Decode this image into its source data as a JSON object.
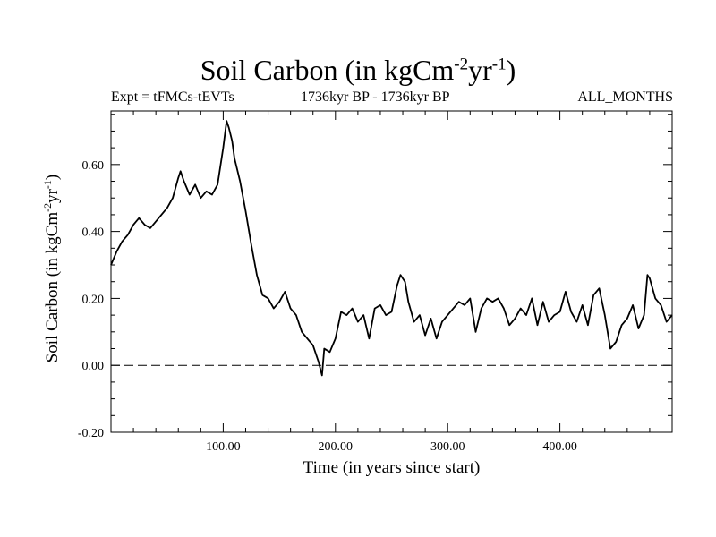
{
  "chart_data": {
    "type": "line",
    "title_main": "Soil Carbon (in kgCm",
    "title_exp1": "-2",
    "title_mid": "yr",
    "title_exp2": "-1",
    "title_end": ")",
    "subtitle_left": "Expt = tFMCs-tEVTs",
    "subtitle_center": "1736kyr BP - 1736kyr BP",
    "subtitle_right": "ALL_MONTHS",
    "xlabel": "Time (in years since start)",
    "ylabel_main": "Soil Carbon (in kgCm",
    "ylabel_exp1": "-2",
    "ylabel_mid": "yr",
    "ylabel_exp2": "-1",
    "ylabel_end": ")",
    "xlim": [
      0,
      500
    ],
    "ylim": [
      -0.2,
      0.76
    ],
    "xticks": [
      100,
      200,
      300,
      400
    ],
    "xtick_labels": [
      "100.00",
      "200.00",
      "300.00",
      "400.00"
    ],
    "yticks": [
      -0.2,
      0.0,
      0.2,
      0.4,
      0.6
    ],
    "ytick_labels": [
      "-0.20",
      "0.00",
      "0.20",
      "0.40",
      "0.60"
    ],
    "reference_line": 0.0,
    "series": [
      {
        "name": "Soil Carbon",
        "x": [
          0,
          5,
          10,
          15,
          20,
          25,
          30,
          35,
          40,
          45,
          50,
          55,
          60,
          62,
          65,
          70,
          75,
          80,
          85,
          90,
          95,
          100,
          103,
          105,
          108,
          110,
          115,
          120,
          125,
          130,
          135,
          140,
          145,
          150,
          155,
          160,
          165,
          170,
          175,
          180,
          185,
          188,
          190,
          195,
          200,
          205,
          210,
          215,
          220,
          225,
          230,
          235,
          240,
          245,
          250,
          255,
          258,
          262,
          265,
          270,
          275,
          280,
          285,
          290,
          295,
          300,
          305,
          310,
          315,
          320,
          325,
          330,
          335,
          340,
          345,
          350,
          355,
          360,
          365,
          370,
          375,
          380,
          385,
          390,
          395,
          400,
          405,
          410,
          415,
          420,
          425,
          430,
          435,
          440,
          445,
          450,
          455,
          460,
          465,
          470,
          475,
          478,
          480,
          485,
          490,
          495,
          500
        ],
        "y": [
          0.3,
          0.34,
          0.37,
          0.39,
          0.42,
          0.44,
          0.42,
          0.41,
          0.43,
          0.45,
          0.47,
          0.5,
          0.56,
          0.58,
          0.55,
          0.51,
          0.54,
          0.5,
          0.52,
          0.51,
          0.54,
          0.65,
          0.73,
          0.71,
          0.67,
          0.62,
          0.55,
          0.46,
          0.36,
          0.27,
          0.21,
          0.2,
          0.17,
          0.19,
          0.22,
          0.17,
          0.15,
          0.1,
          0.08,
          0.06,
          0.01,
          -0.03,
          0.05,
          0.04,
          0.08,
          0.16,
          0.15,
          0.17,
          0.13,
          0.15,
          0.08,
          0.17,
          0.18,
          0.15,
          0.16,
          0.24,
          0.27,
          0.25,
          0.19,
          0.13,
          0.15,
          0.09,
          0.14,
          0.08,
          0.13,
          0.15,
          0.17,
          0.19,
          0.18,
          0.2,
          0.1,
          0.17,
          0.2,
          0.19,
          0.2,
          0.17,
          0.12,
          0.14,
          0.17,
          0.15,
          0.2,
          0.12,
          0.19,
          0.13,
          0.15,
          0.16,
          0.22,
          0.16,
          0.13,
          0.18,
          0.12,
          0.21,
          0.23,
          0.15,
          0.05,
          0.07,
          0.12,
          0.14,
          0.18,
          0.11,
          0.15,
          0.27,
          0.26,
          0.2,
          0.18,
          0.13,
          0.15
        ]
      }
    ]
  }
}
